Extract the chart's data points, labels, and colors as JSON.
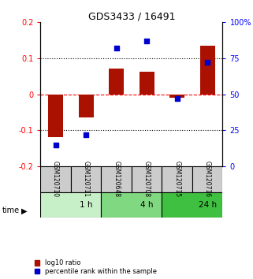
{
  "title": "GDS3433 / 16491",
  "samples": [
    "GSM120710",
    "GSM120711",
    "GSM120648",
    "GSM120708",
    "GSM120715",
    "GSM120716"
  ],
  "log10_ratio": [
    -0.12,
    -0.065,
    0.072,
    0.063,
    -0.01,
    0.135
  ],
  "percentile_rank": [
    15,
    22,
    82,
    87,
    47,
    72
  ],
  "time_groups": [
    {
      "label": "1 h",
      "start": 0,
      "end": 2,
      "color": "#c8f0c8"
    },
    {
      "label": "4 h",
      "start": 2,
      "end": 4,
      "color": "#80d880"
    },
    {
      "label": "24 h",
      "start": 4,
      "end": 6,
      "color": "#40c040"
    }
  ],
  "bar_color": "#aa1100",
  "dot_color": "#0000cc",
  "ylim_left": [
    -0.2,
    0.2
  ],
  "ylim_right": [
    0,
    100
  ],
  "yticks_left": [
    -0.2,
    -0.1,
    0.0,
    0.1,
    0.2
  ],
  "ytick_labels_left": [
    "-0.2",
    "-0.1",
    "0",
    "0.1",
    "0.2"
  ],
  "yticks_right": [
    0,
    25,
    50,
    75,
    100
  ],
  "ytick_labels_right": [
    "0",
    "25",
    "50",
    "75",
    "100%"
  ],
  "hlines": [
    0.1,
    0.0,
    -0.1
  ],
  "hline_styles": [
    "dotted",
    "dashed",
    "dotted"
  ],
  "hline_colors": [
    "black",
    "red",
    "black"
  ],
  "bar_width": 0.5,
  "sample_box_color": "#cccccc",
  "time_label": "time",
  "legend_bar_label": "log10 ratio",
  "legend_dot_label": "percentile rank within the sample"
}
